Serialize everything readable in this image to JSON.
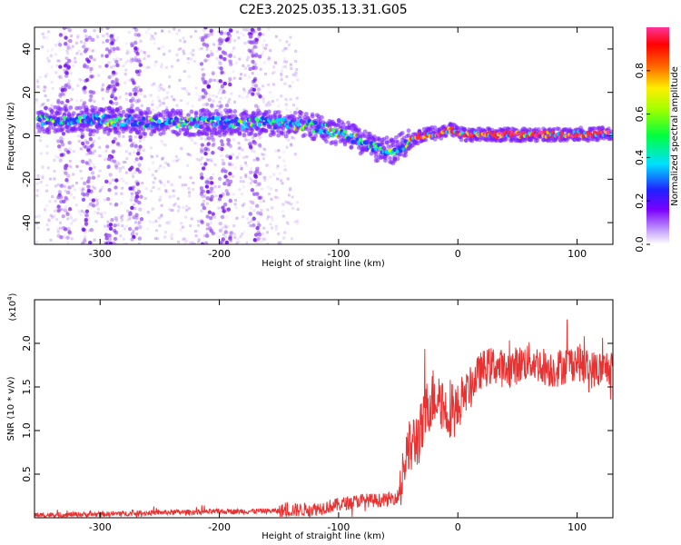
{
  "title": "C2E3.2025.035.13.31.G05",
  "chart_data": [
    {
      "type": "heatmap",
      "xlabel": "Height of straight line (km)",
      "ylabel": "Frequency (Hz)",
      "xlim": [
        -355,
        130
      ],
      "ylim": [
        -50,
        50
      ],
      "xticks": [
        -300,
        -200,
        -100,
        0,
        100
      ],
      "yticks": [
        40,
        20,
        0,
        -20,
        -40
      ],
      "colorbar": {
        "label": "Normalized spectral amplitude",
        "range": [
          0,
          1
        ],
        "ticks": [
          "0.0",
          "0.2",
          "0.4",
          "0.6",
          "0.8"
        ],
        "tick_values": [
          0.0,
          0.2,
          0.4,
          0.6,
          0.8
        ],
        "colormap": "rainbow (white, purple, blue, cyan, green, yellow, orange, red, pink)"
      },
      "ridge": {
        "x": [
          -350,
          -320,
          -280,
          -240,
          -200,
          -160,
          -130,
          -110,
          -90,
          -70,
          -55,
          -45,
          -35,
          -25,
          -15,
          -5,
          0,
          10,
          30,
          60,
          90,
          100,
          110,
          120,
          130
        ],
        "y": [
          7,
          8,
          7,
          6,
          6,
          6,
          5,
          3,
          0,
          -6,
          -7,
          -4,
          -1,
          1,
          1,
          3,
          1,
          0.5,
          0.5,
          0.5,
          0.5,
          1,
          0.5,
          1,
          1
        ]
      },
      "noise_columns_x": [
        -330,
        -310,
        -290,
        -270,
        -210,
        -195,
        -170
      ]
    },
    {
      "type": "line",
      "xlabel": "Height of straight line (km)",
      "ylabel": "SNR (10 * v/v)",
      "y_multiplier": "(x10^4)",
      "y_multiplier_base": "(x10",
      "y_multiplier_exp": "4",
      "xlim": [
        -355,
        130
      ],
      "ylim": [
        0,
        2.5
      ],
      "xticks": [
        -300,
        -200,
        -100,
        0,
        100
      ],
      "yticks": [
        0.5,
        1.0,
        1.5,
        2.0
      ],
      "ytick_labels": [
        "0.5",
        "1.0",
        "1.5",
        "2.0"
      ],
      "line_color": "#e83232",
      "series": [
        {
          "x": [
            -355,
            -300,
            -250,
            -200,
            -150,
            -120,
            -100,
            -80,
            -60,
            -50,
            -45,
            -40,
            -35,
            -30,
            -25,
            -20,
            -15,
            -10,
            -5,
            0,
            5,
            10,
            15,
            20,
            30,
            40,
            50,
            60,
            70,
            80,
            90,
            100,
            110,
            120,
            130
          ],
          "values": [
            0.03,
            0.04,
            0.06,
            0.07,
            0.08,
            0.1,
            0.15,
            0.2,
            0.2,
            0.25,
            0.6,
            0.8,
            0.9,
            1.0,
            1.3,
            1.4,
            1.4,
            1.2,
            1.3,
            1.2,
            1.4,
            1.5,
            1.6,
            1.7,
            1.75,
            1.7,
            1.75,
            1.8,
            1.75,
            1.7,
            1.75,
            1.8,
            1.7,
            1.7,
            1.75
          ]
        }
      ]
    }
  ]
}
